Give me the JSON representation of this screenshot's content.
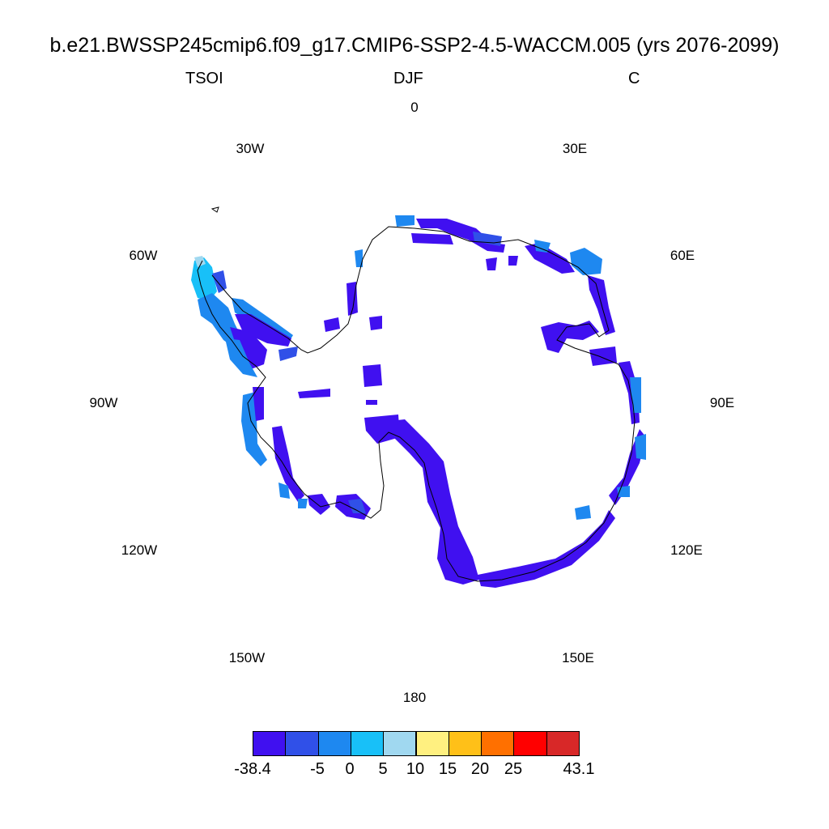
{
  "title": "b.e21.BWSSP245cmip6.f09_g17.CMIP6-SSP2-4.5-WACCM.005 (yrs 2076-2099)",
  "subtitle": {
    "left": "TSOI",
    "center": "DJF",
    "right": "C"
  },
  "longitude_labels": [
    "0",
    "30E",
    "60E",
    "90E",
    "120E",
    "150E",
    "180",
    "150W",
    "120W",
    "90W",
    "60W",
    "30W"
  ],
  "colorbar": {
    "colors": [
      "#4010f0",
      "#3050e8",
      "#1e88f0",
      "#18c0f8",
      "#a0d8f0",
      "#fff080",
      "#ffc018",
      "#ff7000",
      "#ff0000",
      "#d82828"
    ],
    "labels": [
      "-38.4",
      "-5",
      "0",
      "5",
      "10",
      "15",
      "20",
      "25",
      "43.1"
    ]
  },
  "map": {
    "projection": "south polar stereographic",
    "region": "Antarctica",
    "coast_color": "#000000"
  }
}
